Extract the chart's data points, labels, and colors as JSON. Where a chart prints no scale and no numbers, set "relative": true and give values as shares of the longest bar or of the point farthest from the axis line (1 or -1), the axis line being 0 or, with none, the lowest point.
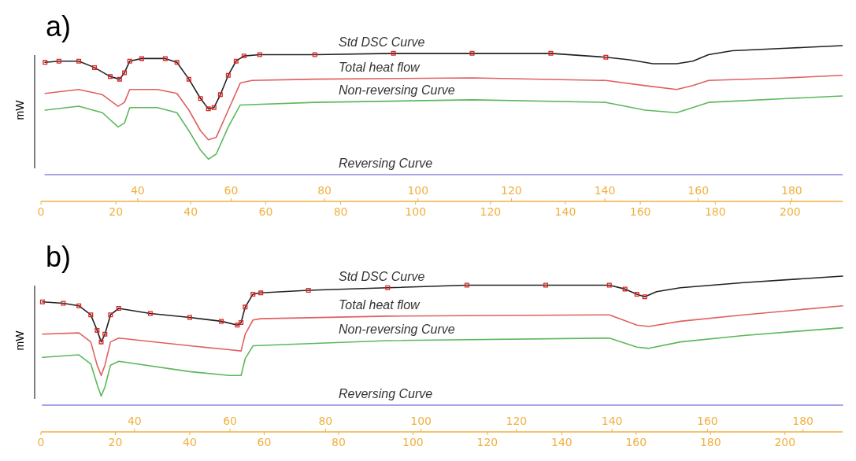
{
  "chart_data": [
    {
      "type": "line",
      "title": "a)",
      "ylabel": "mW",
      "relative": true,
      "xlim": [
        0,
        214
      ],
      "xticks": [
        0,
        20,
        40,
        60,
        80,
        100,
        120,
        140,
        160,
        180,
        200
      ],
      "x2lim": [
        19.3,
        190.9
      ],
      "x2ticks": [
        40,
        60,
        80,
        100,
        120,
        140,
        160,
        180
      ],
      "series": [
        {
          "name": "Std DSC Curve",
          "color": "#222222",
          "x": [
            1.1,
            4.8,
            10.1,
            14.3,
            18.5,
            21,
            22.3,
            23.7,
            26.9,
            33.2,
            36.3,
            39.5,
            42.6,
            44.7,
            46.2,
            47.9,
            50,
            52.1,
            54.2,
            58.4,
            73.1,
            94.1,
            115.1,
            136.1,
            150.8,
            157.1,
            163.4,
            169.7,
            174,
            178.2,
            184.5,
            199.2,
            213.9
          ],
          "values": [
            0.87,
            0.88,
            0.88,
            0.83,
            0.76,
            0.74,
            0.79,
            0.88,
            0.9,
            0.9,
            0.87,
            0.74,
            0.59,
            0.51,
            0.52,
            0.62,
            0.77,
            0.88,
            0.92,
            0.93,
            0.93,
            0.94,
            0.94,
            0.94,
            0.91,
            0.89,
            0.86,
            0.86,
            0.88,
            0.93,
            0.96,
            0.98,
            1
          ]
        },
        {
          "type": "scatter",
          "marker": "square",
          "color": "#dd2222",
          "x": [
            1.1,
            4.8,
            10.1,
            14.3,
            18.5,
            21,
            22.3,
            23.7,
            26.9,
            33.2,
            36.3,
            39.5,
            42.6,
            44.7,
            46.2,
            47.9,
            50,
            52.1,
            54.2,
            58.4,
            73.1,
            94.1,
            115.1,
            136.1,
            150.8
          ],
          "values": [
            0.87,
            0.88,
            0.88,
            0.83,
            0.76,
            0.74,
            0.79,
            0.88,
            0.9,
            0.9,
            0.87,
            0.74,
            0.59,
            0.51,
            0.52,
            0.62,
            0.77,
            0.88,
            0.92,
            0.93,
            0.93,
            0.94,
            0.94,
            0.94,
            0.91
          ]
        },
        {
          "name": "Total heat flow",
          "color": "#e06060",
          "x": [
            1.1,
            10.1,
            16.4,
            20.6,
            22.3,
            23.7,
            31.1,
            36.3,
            39.5,
            42.6,
            44.7,
            46.8,
            50,
            53.2,
            56.3,
            73.1,
            115.1,
            150.8,
            161.3,
            169.7,
            174,
            178.2,
            199.2,
            213.9
          ],
          "values": [
            0.63,
            0.66,
            0.62,
            0.53,
            0.56,
            0.66,
            0.66,
            0.63,
            0.5,
            0.34,
            0.27,
            0.29,
            0.5,
            0.71,
            0.73,
            0.74,
            0.75,
            0.73,
            0.69,
            0.66,
            0.69,
            0.73,
            0.75,
            0.77
          ]
        },
        {
          "name": "Non-reversing Curve",
          "color": "#5cb85c",
          "x": [
            1.1,
            10.1,
            16.4,
            20.6,
            22.3,
            23.7,
            31.1,
            36.3,
            39.5,
            42.6,
            44.7,
            46.8,
            50,
            53.2,
            73.1,
            115.1,
            150.8,
            161.3,
            169.7,
            174,
            178.2,
            199.2,
            213.9
          ],
          "values": [
            0.5,
            0.53,
            0.48,
            0.37,
            0.4,
            0.52,
            0.52,
            0.48,
            0.34,
            0.19,
            0.12,
            0.16,
            0.37,
            0.54,
            0.56,
            0.58,
            0.56,
            0.5,
            0.48,
            0.52,
            0.56,
            0.59,
            0.61
          ]
        },
        {
          "name": "Reversing Curve",
          "color": "#8888dd",
          "x": [
            1.1,
            213.9
          ],
          "values": [
            0,
            0
          ]
        }
      ]
    },
    {
      "type": "line",
      "title": "b)",
      "ylabel": "mW",
      "relative": true,
      "xlim": [
        0,
        215.5
      ],
      "xticks": [
        0,
        20,
        40,
        60,
        80,
        100,
        120,
        140,
        160,
        180,
        200
      ],
      "x2lim": [
        20.4,
        188.3
      ],
      "x2ticks": [
        40,
        60,
        80,
        100,
        120,
        140,
        160,
        180
      ],
      "series": [
        {
          "name": "Std DSC Curve",
          "color": "#222222",
          "x": [
            0.4,
            6,
            10.2,
            13.4,
            15.1,
            16.2,
            17.2,
            18.7,
            20.9,
            29.4,
            40,
            48.5,
            52.8,
            53.8,
            54.9,
            57,
            59.1,
            71.9,
            93.2,
            114.5,
            135.7,
            152.8,
            157,
            160.2,
            162.3,
            165.5,
            171.9,
            188.9,
            215.5
          ],
          "values": [
            0.8,
            0.79,
            0.77,
            0.7,
            0.58,
            0.49,
            0.55,
            0.7,
            0.75,
            0.71,
            0.68,
            0.65,
            0.62,
            0.64,
            0.76,
            0.86,
            0.87,
            0.89,
            0.91,
            0.93,
            0.93,
            0.93,
            0.9,
            0.86,
            0.84,
            0.88,
            0.91,
            0.95,
            1
          ]
        },
        {
          "type": "scatter",
          "marker": "square",
          "color": "#dd2222",
          "x": [
            0.4,
            6,
            10.2,
            13.4,
            15.1,
            16.2,
            17.2,
            18.7,
            20.9,
            29.4,
            40,
            48.5,
            52.8,
            53.8,
            54.9,
            57,
            59.1,
            71.9,
            93.2,
            114.5,
            135.7,
            152.8,
            157,
            160.2,
            162.3
          ],
          "values": [
            0.8,
            0.79,
            0.77,
            0.7,
            0.58,
            0.49,
            0.55,
            0.7,
            0.75,
            0.71,
            0.68,
            0.65,
            0.62,
            0.64,
            0.76,
            0.86,
            0.87,
            0.89,
            0.91,
            0.93,
            0.93,
            0.93,
            0.9,
            0.86,
            0.84
          ]
        },
        {
          "name": "Total heat flow",
          "color": "#e06060",
          "x": [
            0.4,
            10.2,
            13.4,
            15.1,
            16.2,
            17.2,
            18.7,
            20.9,
            40,
            50.6,
            53.8,
            54.9,
            57,
            59.1,
            93.2,
            152.8,
            160.2,
            163.4,
            171.9,
            188.9,
            215.5
          ],
          "values": [
            0.55,
            0.56,
            0.49,
            0.31,
            0.23,
            0.31,
            0.49,
            0.52,
            0.46,
            0.43,
            0.42,
            0.55,
            0.66,
            0.67,
            0.69,
            0.7,
            0.62,
            0.61,
            0.65,
            0.7,
            0.77
          ]
        },
        {
          "name": "Non-reversing Curve",
          "color": "#5cb85c",
          "x": [
            0.4,
            10.2,
            13.4,
            15.1,
            16.2,
            17.2,
            18.7,
            20.9,
            40,
            50.6,
            53.8,
            54.9,
            57,
            93.2,
            152.8,
            160.2,
            163.4,
            171.9,
            188.9,
            215.5
          ],
          "values": [
            0.37,
            0.39,
            0.32,
            0.16,
            0.07,
            0.14,
            0.31,
            0.34,
            0.26,
            0.23,
            0.23,
            0.36,
            0.46,
            0.5,
            0.52,
            0.45,
            0.44,
            0.49,
            0.54,
            0.6
          ]
        },
        {
          "name": "Reversing Curve",
          "color": "#8888dd",
          "x": [
            0.4,
            215.5
          ],
          "values": [
            0,
            0
          ]
        }
      ]
    }
  ]
}
